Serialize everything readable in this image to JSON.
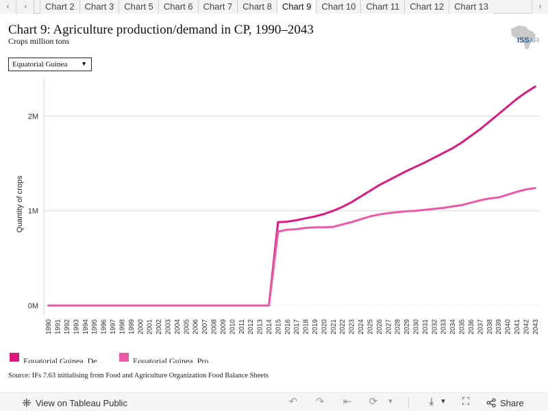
{
  "tabs": {
    "items": [
      "Chart 2",
      "Chart 3",
      "Chart 5",
      "Chart 6",
      "Chart 7",
      "Chart 8",
      "Chart 9",
      "Chart 10",
      "Chart 11",
      "Chart 12",
      "Chart 13"
    ],
    "active_index": 6,
    "prev_icon": "chevron-left-icon",
    "next_icon": "chevron-right-icon"
  },
  "header": {
    "title": "Chart 9: Agriculture production/demand in CP, 1990–2043",
    "subtitle": "Crops million tons",
    "logo_text": "ISS",
    "logo_suffix": "AFI"
  },
  "filter": {
    "selected": "Equatorial Guinea"
  },
  "legend": {
    "items": [
      {
        "label": "Equatorial Guinea_De...",
        "color": "#e0177f"
      },
      {
        "label": "Equatorial Guinea_Pro...",
        "color": "#ee57a6"
      }
    ]
  },
  "source": "Source: IFs 7.63 initialising from Food and Agriculture Organization Food Balance Sheets",
  "toolbar": {
    "view_label": "View on Tableau Public",
    "share_label": "Share",
    "icons": [
      "tableau-icon",
      "undo-icon",
      "redo-icon",
      "revert-icon",
      "refresh-icon",
      "download-icon",
      "fullscreen-icon",
      "share-icon"
    ]
  },
  "chart_data": {
    "type": "line",
    "ylabel": "Quantity of crops",
    "xlabel": "",
    "ylim": [
      0,
      2400000
    ],
    "yticks": [
      0,
      1000000,
      2000000
    ],
    "ytick_labels": [
      "0M",
      "1M",
      "2M"
    ],
    "x": [
      1990,
      1991,
      1992,
      1993,
      1994,
      1995,
      1996,
      1997,
      1998,
      1999,
      2000,
      2001,
      2002,
      2003,
      2004,
      2005,
      2006,
      2007,
      2008,
      2009,
      2010,
      2011,
      2012,
      2013,
      2014,
      2015,
      2016,
      2017,
      2018,
      2019,
      2020,
      2021,
      2022,
      2023,
      2024,
      2025,
      2026,
      2027,
      2028,
      2029,
      2030,
      2031,
      2032,
      2033,
      2034,
      2035,
      2036,
      2037,
      2038,
      2039,
      2040,
      2041,
      2042,
      2043
    ],
    "grid": true,
    "series": [
      {
        "name": "Equatorial Guinea_De...",
        "color": "#e0177f",
        "values": [
          0,
          0,
          0,
          0,
          0,
          0,
          0,
          0,
          0,
          0,
          0,
          0,
          0,
          0,
          0,
          0,
          0,
          0,
          0,
          0,
          0,
          0,
          0,
          0,
          0,
          880000,
          885000,
          900000,
          920000,
          940000,
          965000,
          1000000,
          1040000,
          1090000,
          1150000,
          1210000,
          1270000,
          1320000,
          1370000,
          1420000,
          1465000,
          1510000,
          1560000,
          1610000,
          1660000,
          1720000,
          1790000,
          1860000,
          1940000,
          2020000,
          2100000,
          2180000,
          2250000,
          2310000
        ]
      },
      {
        "name": "Equatorial Guinea_Pro...",
        "color": "#ee57a6",
        "values": [
          0,
          0,
          0,
          0,
          0,
          0,
          0,
          0,
          0,
          0,
          0,
          0,
          0,
          0,
          0,
          0,
          0,
          0,
          0,
          0,
          0,
          0,
          0,
          0,
          0,
          780000,
          800000,
          805000,
          820000,
          825000,
          825000,
          830000,
          855000,
          880000,
          910000,
          940000,
          960000,
          975000,
          985000,
          995000,
          1000000,
          1010000,
          1020000,
          1030000,
          1045000,
          1060000,
          1085000,
          1110000,
          1130000,
          1140000,
          1170000,
          1200000,
          1225000,
          1240000
        ]
      }
    ]
  }
}
